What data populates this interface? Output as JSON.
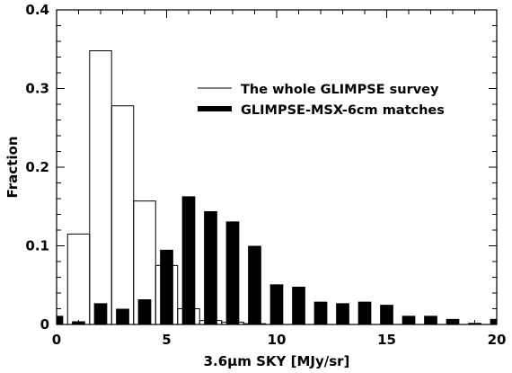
{
  "chart_data": {
    "type": "bar",
    "title": "",
    "xlabel": "3.6µm SKY [MJy/sr]",
    "ylabel": "Fraction",
    "xlim": [
      0,
      20
    ],
    "ylim": [
      0,
      0.4
    ],
    "xticks": [
      0,
      5,
      10,
      15,
      20
    ],
    "yticks": [
      0,
      0.1,
      0.2,
      0.3,
      0.4
    ],
    "grid": false,
    "legend_position": "upper-right",
    "series": [
      {
        "name": "The whole GLIMPSE survey",
        "style": "hollow",
        "color": "#000000",
        "bin_width": 1.0,
        "bins": [
          {
            "x": 1.0,
            "value": 0.115
          },
          {
            "x": 2.0,
            "value": 0.348
          },
          {
            "x": 3.0,
            "value": 0.278
          },
          {
            "x": 4.0,
            "value": 0.157
          },
          {
            "x": 5.0,
            "value": 0.075
          },
          {
            "x": 6.0,
            "value": 0.02
          },
          {
            "x": 7.0,
            "value": 0.005
          },
          {
            "x": 8.0,
            "value": 0.003
          },
          {
            "x": 9.0,
            "value": 0.001
          }
        ]
      },
      {
        "name": "GLIMPSE-MSX-6cm matches",
        "style": "filled",
        "color": "#000000",
        "bin_width": 0.6,
        "bins": [
          {
            "x": 0.0,
            "value": 0.011
          },
          {
            "x": 1.0,
            "value": 0.004
          },
          {
            "x": 2.0,
            "value": 0.027
          },
          {
            "x": 3.0,
            "value": 0.02
          },
          {
            "x": 4.0,
            "value": 0.032
          },
          {
            "x": 5.0,
            "value": 0.095
          },
          {
            "x": 6.0,
            "value": 0.163
          },
          {
            "x": 7.0,
            "value": 0.144
          },
          {
            "x": 8.0,
            "value": 0.131
          },
          {
            "x": 9.0,
            "value": 0.1
          },
          {
            "x": 10.0,
            "value": 0.051
          },
          {
            "x": 11.0,
            "value": 0.048
          },
          {
            "x": 12.0,
            "value": 0.029
          },
          {
            "x": 13.0,
            "value": 0.027
          },
          {
            "x": 14.0,
            "value": 0.029
          },
          {
            "x": 15.0,
            "value": 0.025
          },
          {
            "x": 16.0,
            "value": 0.011
          },
          {
            "x": 17.0,
            "value": 0.011
          },
          {
            "x": 18.0,
            "value": 0.007
          },
          {
            "x": 19.0,
            "value": 0.002
          },
          {
            "x": 20.0,
            "value": 0.007
          }
        ]
      }
    ]
  }
}
